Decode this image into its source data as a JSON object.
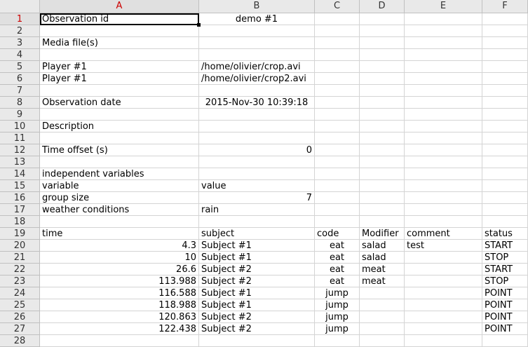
{
  "columns": [
    "A",
    "B",
    "C",
    "D",
    "E",
    "F"
  ],
  "rows": [
    {
      "n": "1",
      "cells": [
        "Observation id",
        "demo #1",
        "",
        "",
        "",
        ""
      ]
    },
    {
      "n": "2",
      "cells": [
        "",
        "",
        "",
        "",
        "",
        ""
      ]
    },
    {
      "n": "3",
      "cells": [
        "Media file(s)",
        "",
        "",
        "",
        "",
        ""
      ]
    },
    {
      "n": "4",
      "cells": [
        "",
        "",
        "",
        "",
        "",
        ""
      ]
    },
    {
      "n": "5",
      "cells": [
        "Player #1",
        "/home/olivier/crop.avi",
        "",
        "",
        "",
        ""
      ]
    },
    {
      "n": "6",
      "cells": [
        "Player #1",
        "/home/olivier/crop2.avi",
        "",
        "",
        "",
        ""
      ]
    },
    {
      "n": "7",
      "cells": [
        "",
        "",
        "",
        "",
        "",
        ""
      ]
    },
    {
      "n": "8",
      "cells": [
        "Observation date",
        "2015-Nov-30 10:39:18",
        "",
        "",
        "",
        ""
      ]
    },
    {
      "n": "9",
      "cells": [
        "",
        "",
        "",
        "",
        "",
        ""
      ]
    },
    {
      "n": "10",
      "cells": [
        "Description",
        "",
        "",
        "",
        "",
        ""
      ]
    },
    {
      "n": "11",
      "cells": [
        "",
        "",
        "",
        "",
        "",
        ""
      ]
    },
    {
      "n": "12",
      "cells": [
        "Time offset (s)",
        "0",
        "",
        "",
        "",
        ""
      ]
    },
    {
      "n": "13",
      "cells": [
        "",
        "",
        "",
        "",
        "",
        ""
      ]
    },
    {
      "n": "14",
      "cells": [
        "independent variables",
        "",
        "",
        "",
        "",
        ""
      ]
    },
    {
      "n": "15",
      "cells": [
        "variable",
        "value",
        "",
        "",
        "",
        ""
      ]
    },
    {
      "n": "16",
      "cells": [
        "group size",
        "7",
        "",
        "",
        "",
        ""
      ]
    },
    {
      "n": "17",
      "cells": [
        "weather conditions",
        "rain",
        "",
        "",
        "",
        ""
      ]
    },
    {
      "n": "18",
      "cells": [
        "",
        "",
        "",
        "",
        "",
        ""
      ]
    },
    {
      "n": "19",
      "cells": [
        "time",
        "subject",
        "code",
        "Modifier",
        "comment",
        "status"
      ]
    },
    {
      "n": "20",
      "cells": [
        "4.3",
        "Subject #1",
        "eat",
        "salad",
        "test",
        "START"
      ]
    },
    {
      "n": "21",
      "cells": [
        "10",
        "Subject #1",
        "eat",
        "salad",
        "",
        "STOP"
      ]
    },
    {
      "n": "22",
      "cells": [
        "26.6",
        "Subject #2",
        "eat",
        "meat",
        "",
        "START"
      ]
    },
    {
      "n": "23",
      "cells": [
        "113.988",
        "Subject #2",
        "eat",
        "meat",
        "",
        "STOP"
      ]
    },
    {
      "n": "24",
      "cells": [
        "116.588",
        "Subject #1",
        "jump",
        "",
        "",
        "POINT"
      ]
    },
    {
      "n": "25",
      "cells": [
        "118.988",
        "Subject #1",
        "jump",
        "",
        "",
        "POINT"
      ]
    },
    {
      "n": "26",
      "cells": [
        "120.863",
        "Subject #2",
        "jump",
        "",
        "",
        "POINT"
      ]
    },
    {
      "n": "27",
      "cells": [
        "122.438",
        "Subject #2",
        "jump",
        "",
        "",
        "POINT"
      ]
    },
    {
      "n": "28",
      "cells": [
        "",
        "",
        "",
        "",
        "",
        ""
      ]
    }
  ],
  "active_cell": "A1"
}
